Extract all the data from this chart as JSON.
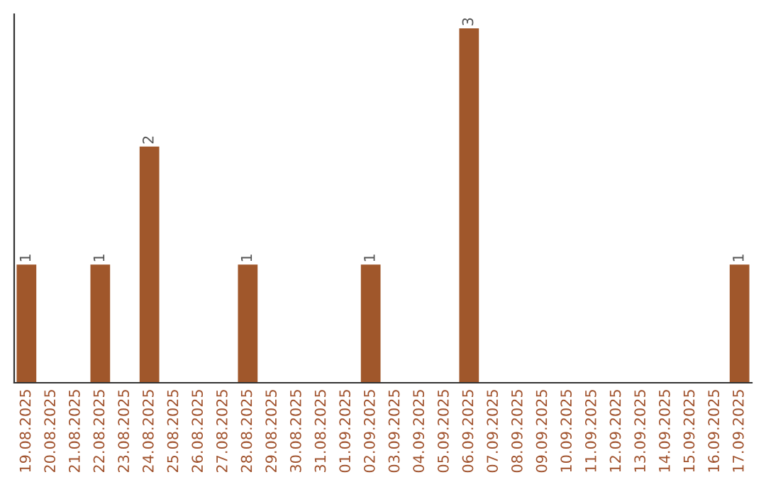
{
  "chart_data": {
    "type": "bar",
    "categories": [
      "19.08.2025",
      "20.08.2025",
      "21.08.2025",
      "22.08.2025",
      "23.08.2025",
      "24.08.2025",
      "25.08.2025",
      "26.08.2025",
      "27.08.2025",
      "28.08.2025",
      "29.08.2025",
      "30.08.2025",
      "31.08.2025",
      "01.09.2025",
      "02.09.2025",
      "03.09.2025",
      "04.09.2025",
      "05.09.2025",
      "06.09.2025",
      "07.09.2025",
      "08.09.2025",
      "09.09.2025",
      "10.09.2025",
      "11.09.2025",
      "12.09.2025",
      "13.09.2025",
      "14.09.2025",
      "15.09.2025",
      "16.09.2025",
      "17.09.2025"
    ],
    "values": [
      1,
      0,
      0,
      1,
      0,
      2,
      0,
      0,
      0,
      1,
      0,
      0,
      0,
      0,
      1,
      0,
      0,
      0,
      3,
      0,
      0,
      0,
      0,
      0,
      0,
      0,
      0,
      0,
      0,
      1
    ],
    "value_labels": [
      "1",
      null,
      null,
      "1",
      null,
      "2",
      null,
      null,
      null,
      "1",
      null,
      null,
      null,
      null,
      "1",
      null,
      null,
      null,
      "3",
      null,
      null,
      null,
      null,
      null,
      null,
      null,
      null,
      null,
      null,
      "1"
    ],
    "color": "#a0572b",
    "tick_labels": "x",
    "grid": false,
    "legend": false
  }
}
